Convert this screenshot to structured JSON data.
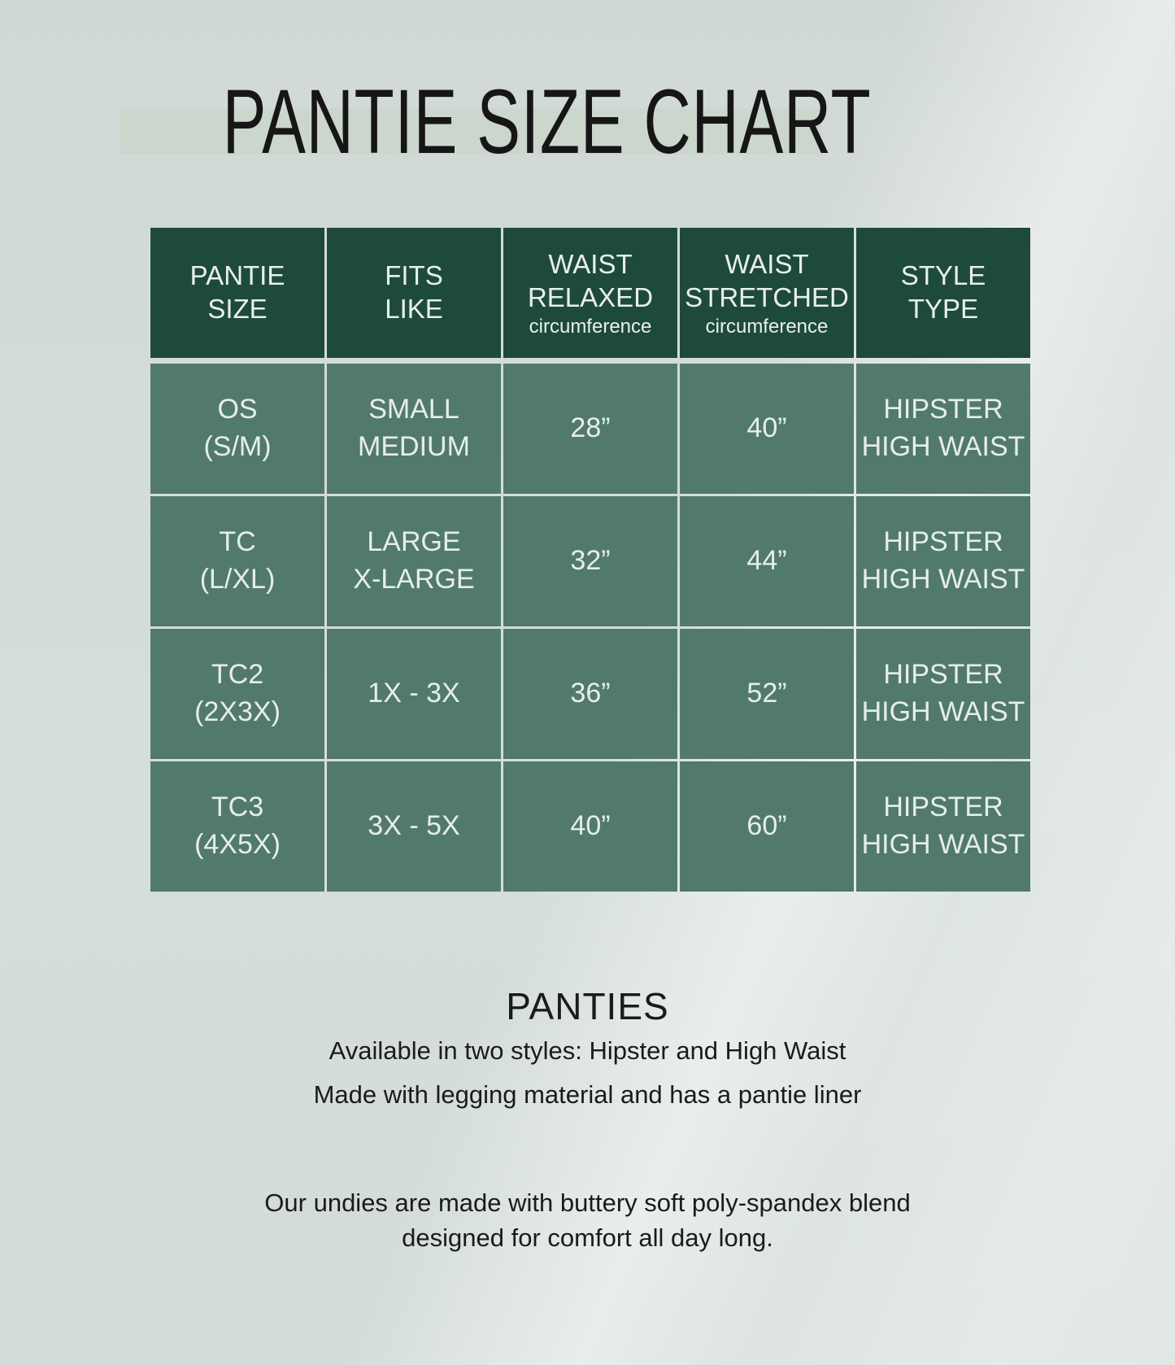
{
  "page": {
    "title": "PANTIE SIZE CHART"
  },
  "table": {
    "columns": [
      {
        "label": "PANTIE\nSIZE",
        "sub": ""
      },
      {
        "label": "FITS\nLIKE",
        "sub": ""
      },
      {
        "label": "WAIST\nRELAXED",
        "sub": "circumference"
      },
      {
        "label": "WAIST\nSTRETCHED",
        "sub": "circumference"
      },
      {
        "label": "STYLE\nTYPE",
        "sub": ""
      }
    ],
    "rows": [
      [
        "OS\n(S/M)",
        "SMALL\nMEDIUM",
        "28”",
        "40”",
        "HIPSTER\nHIGH WAIST"
      ],
      [
        "TC\n(L/XL)",
        "LARGE\nX-LARGE",
        "32”",
        "44”",
        "HIPSTER\nHIGH WAIST"
      ],
      [
        "TC2\n(2X3X)",
        "1X - 3X",
        "36”",
        "52”",
        "HIPSTER\nHIGH WAIST"
      ],
      [
        "TC3\n(4X5X)",
        "3X - 5X",
        "40”",
        "60”",
        "HIPSTER\nHIGH WAIST"
      ]
    ]
  },
  "notes": {
    "heading": "PANTIES",
    "line1": "Available in two styles: Hipster and High Waist",
    "line2": "Made with legging material and has a pantie liner"
  },
  "footer": {
    "line1": "Our undies are made with buttery soft poly-spandex blend",
    "line2": "designed for comfort all day long."
  },
  "colors": {
    "header_green": "#1e4a3e",
    "cell_green": "#52796d",
    "title_band": "#cbd6cd",
    "background": "#d4dcda",
    "cell_text": "#e9efec",
    "text_dark": "#1b1b1b"
  },
  "chart_data": {
    "type": "table",
    "title": "PANTIE SIZE CHART",
    "columns": [
      "PANTIE SIZE",
      "FITS LIKE",
      "WAIST RELAXED circumference",
      "WAIST STRETCHED circumference",
      "STYLE TYPE"
    ],
    "rows": [
      [
        "OS (S/M)",
        "SMALL MEDIUM",
        "28”",
        "40”",
        "HIPSTER HIGH WAIST"
      ],
      [
        "TC (L/XL)",
        "LARGE X-LARGE",
        "32”",
        "44”",
        "HIPSTER HIGH WAIST"
      ],
      [
        "TC2 (2X3X)",
        "1X - 3X",
        "36”",
        "52”",
        "HIPSTER HIGH WAIST"
      ],
      [
        "TC3 (4X5X)",
        "3X - 5X",
        "40”",
        "60”",
        "HIPSTER HIGH WAIST"
      ]
    ]
  }
}
